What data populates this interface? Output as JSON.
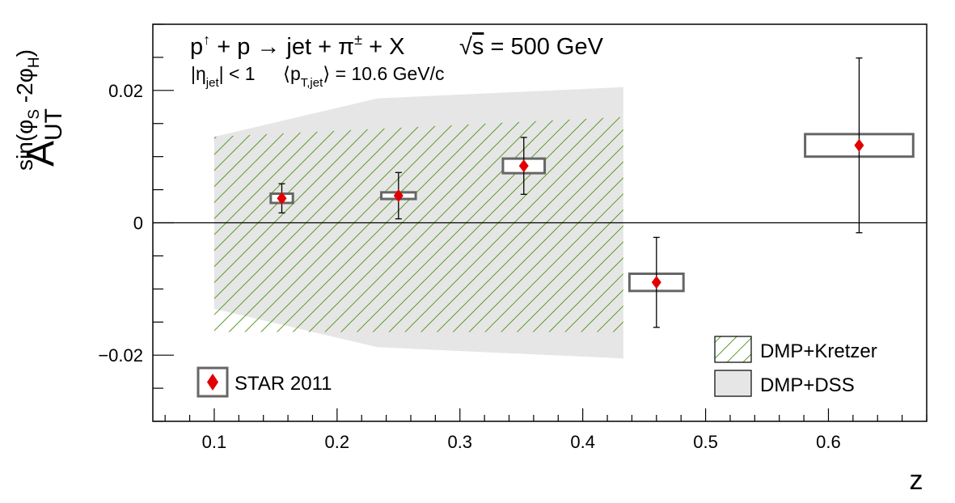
{
  "chart_data": {
    "type": "scatter",
    "title": "",
    "annotations": {
      "line1_reaction": "p↑ + p → jet + π± + X",
      "line1_energy": "√s = 500 GeV",
      "line2_eta": "|ηjet| < 1",
      "line2_pt": "⟨pT,jet⟩ = 10.6 GeV/c"
    },
    "xlabel": "z",
    "ylabel": "A_UT^sin(φS-2φH)",
    "xlim": [
      0.05,
      0.68
    ],
    "ylim": [
      -0.03,
      0.03
    ],
    "x_ticks": [
      0.1,
      0.2,
      0.3,
      0.4,
      0.5,
      0.6
    ],
    "x_tick_labels": [
      "0.1",
      "0.2",
      "0.3",
      "0.4",
      "0.5",
      "0.6"
    ],
    "y_ticks": [
      -0.02,
      0,
      0.02
    ],
    "y_tick_labels": [
      "−0.02",
      "0",
      "0.02"
    ],
    "grid": false,
    "zero_line": true,
    "series": [
      {
        "name": "STAR 2011",
        "marker_color": "#e00000",
        "points": [
          {
            "x": 0.155,
            "y": 0.0037,
            "stat_err": 0.0022,
            "sys_x_halfwidth": 0.009,
            "sys_y_halfwidth": 0.0007
          },
          {
            "x": 0.25,
            "y": 0.0041,
            "stat_err": 0.0035,
            "sys_x_halfwidth": 0.014,
            "sys_y_halfwidth": 0.0005
          },
          {
            "x": 0.352,
            "y": 0.0086,
            "stat_err": 0.0043,
            "sys_x_halfwidth": 0.017,
            "sys_y_halfwidth": 0.0011
          },
          {
            "x": 0.46,
            "y": -0.009,
            "stat_err": 0.0068,
            "sys_x_halfwidth": 0.022,
            "sys_y_halfwidth": 0.0013
          },
          {
            "x": 0.625,
            "y": 0.0117,
            "stat_err": 0.0132,
            "sys_x_halfwidth": 0.044,
            "sys_y_halfwidth": 0.0017
          }
        ]
      }
    ],
    "bands": [
      {
        "name": "DMP+DSS",
        "fill": "#e6e6e6",
        "x": [
          0.1,
          0.233,
          0.433
        ],
        "upper": [
          0.013,
          0.0188,
          0.0205
        ],
        "lower": [
          -0.013,
          -0.0188,
          -0.0205
        ]
      },
      {
        "name": "DMP+Kretzer",
        "hatch_color": "#5a9a2a",
        "x": [
          0.1,
          0.433
        ],
        "upper": [
          0.013,
          0.016
        ],
        "lower": [
          -0.0165,
          -0.0165
        ]
      }
    ],
    "legend": {
      "placement": "bottom-left / bottom-right",
      "entries": [
        "STAR 2011",
        "DMP+Kretzer",
        "DMP+DSS"
      ]
    }
  }
}
